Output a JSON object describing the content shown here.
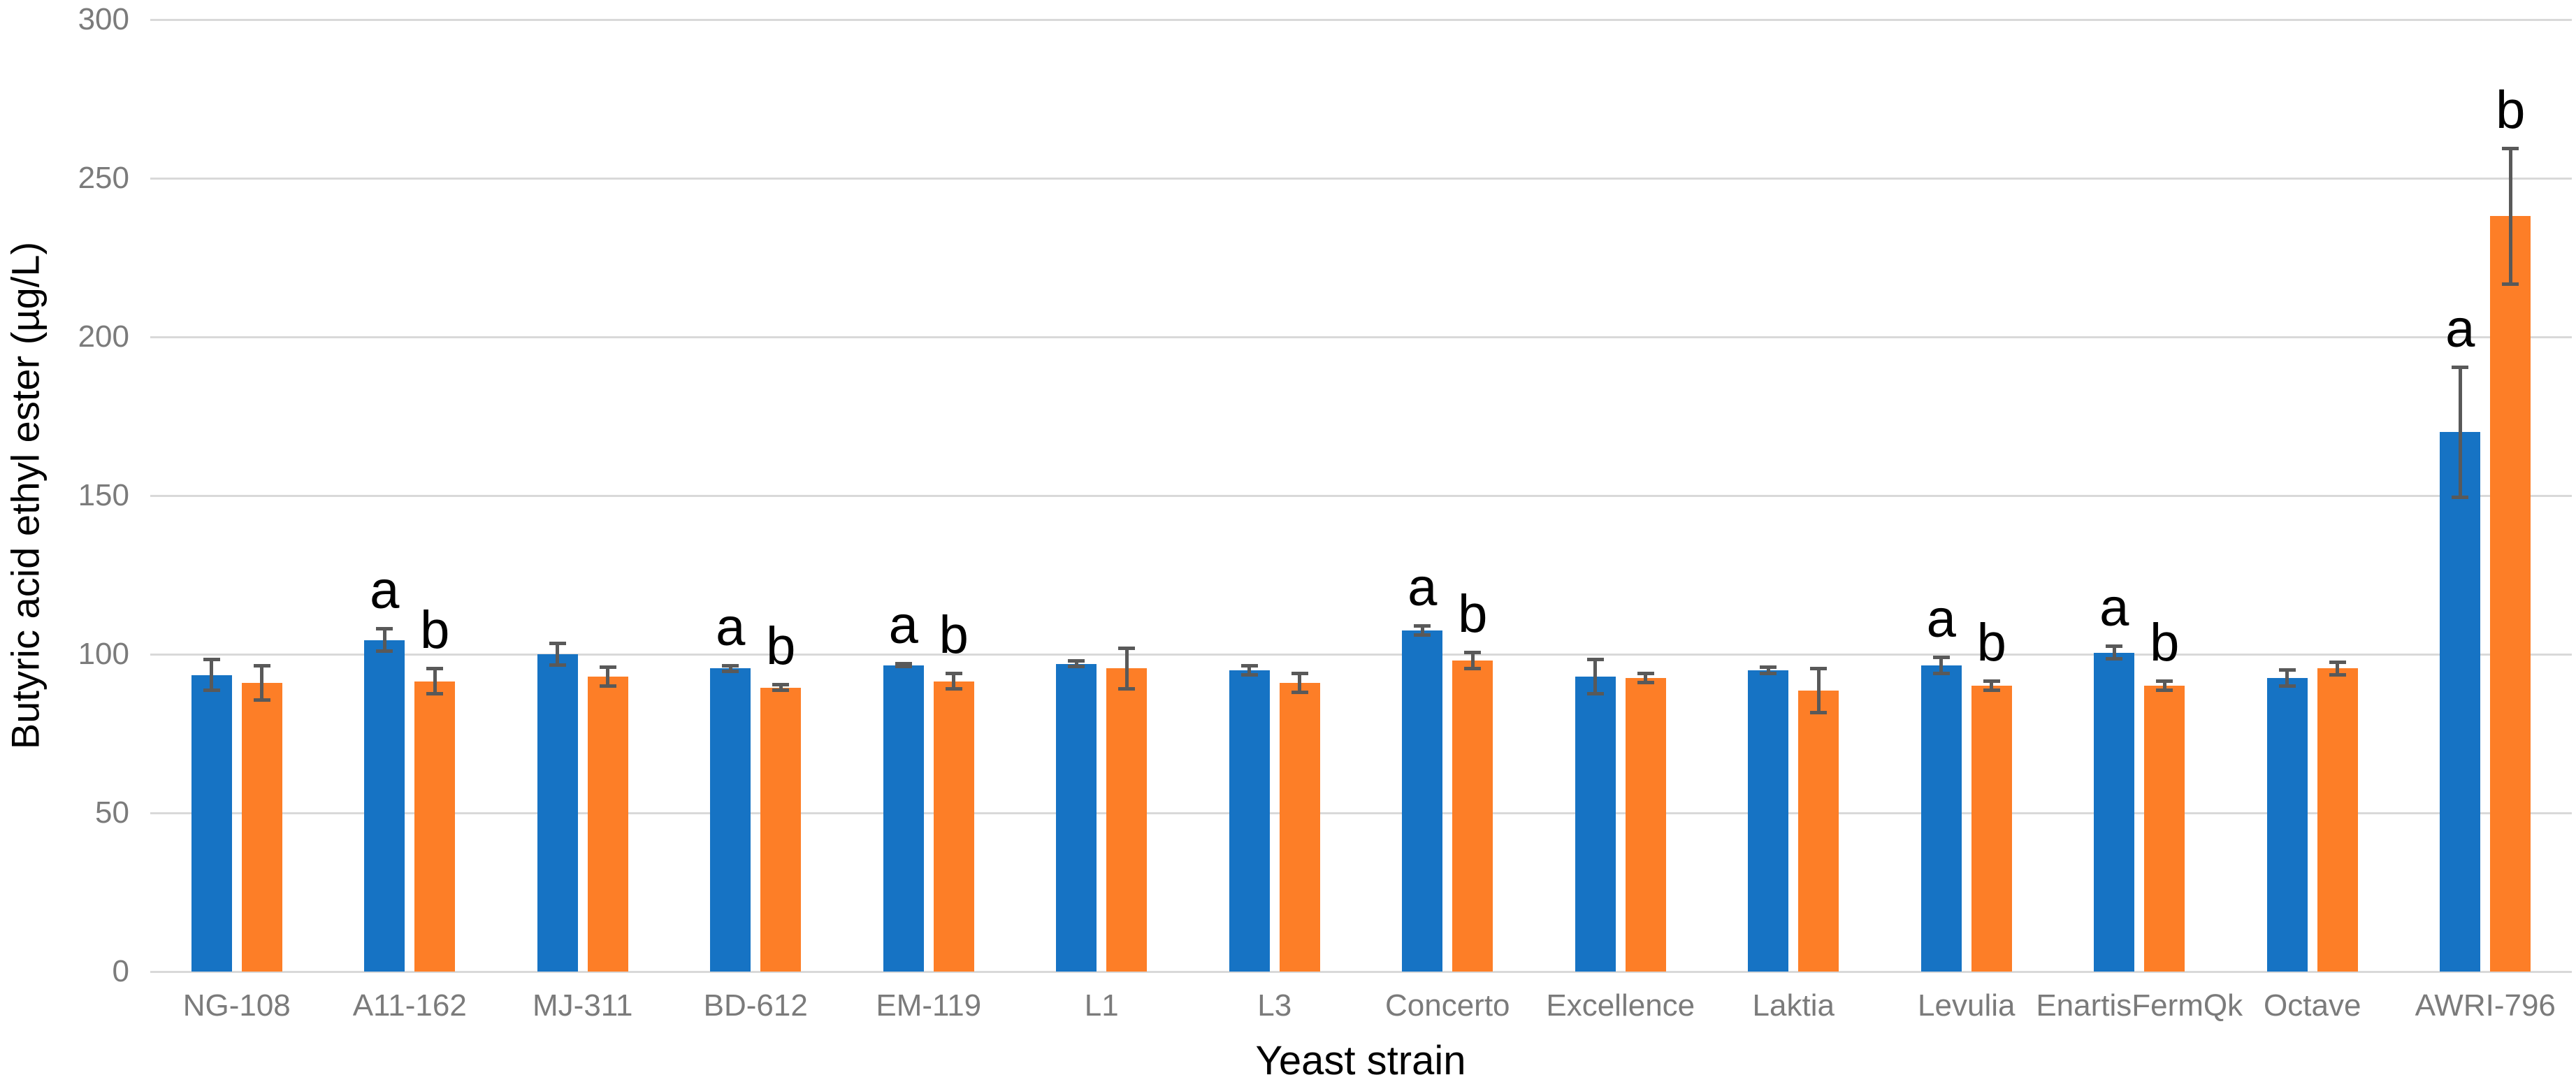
{
  "chart_data": {
    "type": "bar",
    "title": "",
    "xlabel": "Yeast strain",
    "ylabel": "Butyric acid ethyl ester (µg/L)",
    "ylim": [
      0,
      300
    ],
    "yticks": [
      0,
      50,
      100,
      150,
      200,
      250,
      300
    ],
    "grid": "horizontal-light-gray",
    "legend_position": "none",
    "categories": [
      "NG-108",
      "A11-162",
      "MJ-311",
      "BD-612",
      "EM-119",
      "L1",
      "L3",
      "Concerto",
      "Excellence",
      "Laktia",
      "Levulia",
      "EnartisFermQk",
      "Octave",
      "AWRI-796"
    ],
    "series": [
      {
        "name": "blue",
        "color": "#1673C4",
        "values": [
          93.5,
          104.5,
          100,
          95.5,
          96.5,
          97,
          95,
          107.5,
          93,
          95,
          96.5,
          100.5,
          92.5,
          170
        ],
        "errors": [
          5.5,
          4,
          4,
          1.5,
          1,
          1.5,
          2,
          2,
          6,
          1.5,
          3,
          2.5,
          3,
          21
        ],
        "letters": [
          "",
          "a",
          "",
          "a",
          "a",
          "",
          "",
          "a",
          "",
          "",
          "a",
          "a",
          "",
          "a"
        ]
      },
      {
        "name": "orange",
        "color": "#FD7E27",
        "values": [
          91,
          91.5,
          93,
          89.5,
          91.5,
          95.5,
          91,
          98,
          92.5,
          88.5,
          90,
          90,
          95.5,
          238
        ],
        "errors": [
          6,
          4.5,
          3.5,
          1.5,
          3,
          7,
          3.5,
          3,
          2,
          7.5,
          2,
          2,
          2.5,
          22
        ],
        "letters": [
          "",
          "b",
          "",
          "b",
          "b",
          "",
          "",
          "b",
          "",
          "",
          "b",
          "b",
          "",
          "b"
        ]
      }
    ],
    "error_bar_color": "#595959",
    "gridline_color": "#d9d9d9",
    "tick_label_color": "#7b7b7b",
    "axis_title_color": "#000000",
    "significance_letter_color": "#000000",
    "background": "#ffffff"
  }
}
